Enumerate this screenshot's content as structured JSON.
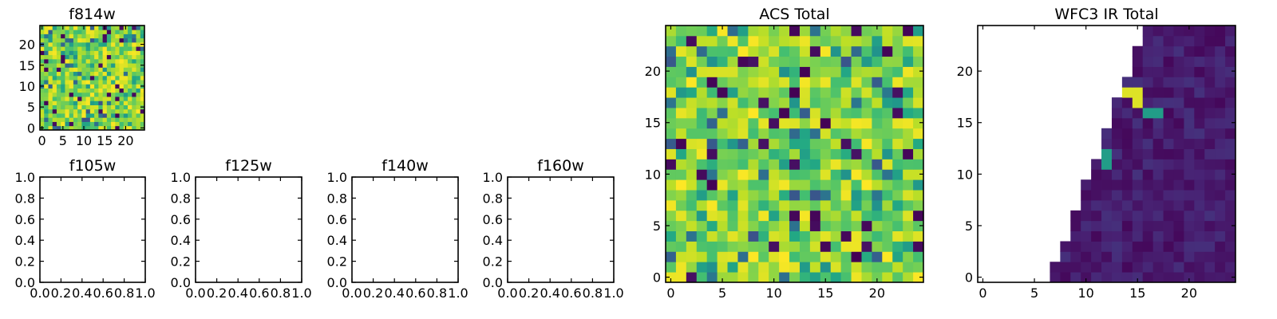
{
  "chart_data": [
    {
      "type": "heatmap",
      "title": "f814w",
      "grid_size": 25,
      "ylim": [
        -0.5,
        24.5
      ],
      "xticks": [
        0,
        5,
        10,
        15,
        20
      ],
      "yticks": [
        0,
        5,
        10,
        15,
        20
      ],
      "xtick_labels": [
        "0",
        "5",
        "10",
        "15",
        "20"
      ],
      "ytick_labels": [
        "0",
        "5",
        "10",
        "15",
        "20"
      ],
      "colormap": "viridis",
      "pattern": "random-high",
      "seed": 11
    },
    {
      "type": "empty",
      "title": "f105w",
      "xlim": [
        0,
        1
      ],
      "ylim": [
        0,
        1
      ],
      "xtick_labels": [
        "0.0",
        "0.2",
        "0.4",
        "0.6",
        "0.8",
        "1.0"
      ],
      "ytick_labels": [
        "0.0",
        "0.2",
        "0.4",
        "0.6",
        "0.8",
        "1.0"
      ]
    },
    {
      "type": "empty",
      "title": "f125w",
      "xlim": [
        0,
        1
      ],
      "ylim": [
        0,
        1
      ],
      "xtick_labels": [
        "0.0",
        "0.2",
        "0.4",
        "0.6",
        "0.8",
        "1.0"
      ],
      "ytick_labels": [
        "0.0",
        "0.2",
        "0.4",
        "0.6",
        "0.8",
        "1.0"
      ]
    },
    {
      "type": "empty",
      "title": "f140w",
      "xlim": [
        0,
        1
      ],
      "ylim": [
        0,
        1
      ],
      "xtick_labels": [
        "0.0",
        "0.2",
        "0.4",
        "0.6",
        "0.8",
        "1.0"
      ],
      "ytick_labels": [
        "0.0",
        "0.2",
        "0.4",
        "0.6",
        "0.8",
        "1.0"
      ]
    },
    {
      "type": "empty",
      "title": "f160w",
      "xlim": [
        0,
        1
      ],
      "ylim": [
        0,
        1
      ],
      "xtick_labels": [
        "0.0",
        "0.2",
        "0.4",
        "0.6",
        "0.8",
        "1.0"
      ],
      "ytick_labels": [
        "0.0",
        "0.2",
        "0.4",
        "0.6",
        "0.8",
        "1.0"
      ]
    },
    {
      "type": "heatmap",
      "title": "ACS Total",
      "grid_size": 25,
      "ylim": [
        -0.5,
        24.5
      ],
      "xticks": [
        0,
        5,
        10,
        15,
        20
      ],
      "yticks": [
        0,
        5,
        10,
        15,
        20
      ],
      "xtick_labels": [
        "0",
        "5",
        "10",
        "15",
        "20"
      ],
      "ytick_labels": [
        "0",
        "5",
        "10",
        "15",
        "20"
      ],
      "colormap": "viridis",
      "pattern": "random-high",
      "seed": 7
    },
    {
      "type": "heatmap",
      "title": "WFC3 IR Total",
      "grid_size": 25,
      "ylim": [
        -0.5,
        24.5
      ],
      "xticks": [
        0,
        5,
        10,
        15,
        20
      ],
      "yticks": [
        0,
        5,
        10,
        15,
        20
      ],
      "xtick_labels": [
        "0",
        "5",
        "10",
        "15",
        "20"
      ],
      "ytick_labels": [
        "0",
        "5",
        "10",
        "15",
        "20"
      ],
      "colormap": "viridis",
      "pattern": "wedge-dark",
      "seed": 3,
      "coverage_edge": "column 7 at row 0 rising to column 16 at row 24; left of edge is empty (NaN)",
      "bright_cells": [
        [
          14,
          18
        ],
        [
          15,
          18
        ],
        [
          16,
          16
        ],
        [
          17,
          16
        ],
        [
          12,
          12
        ],
        [
          15,
          17
        ],
        [
          12,
          11
        ]
      ]
    }
  ]
}
